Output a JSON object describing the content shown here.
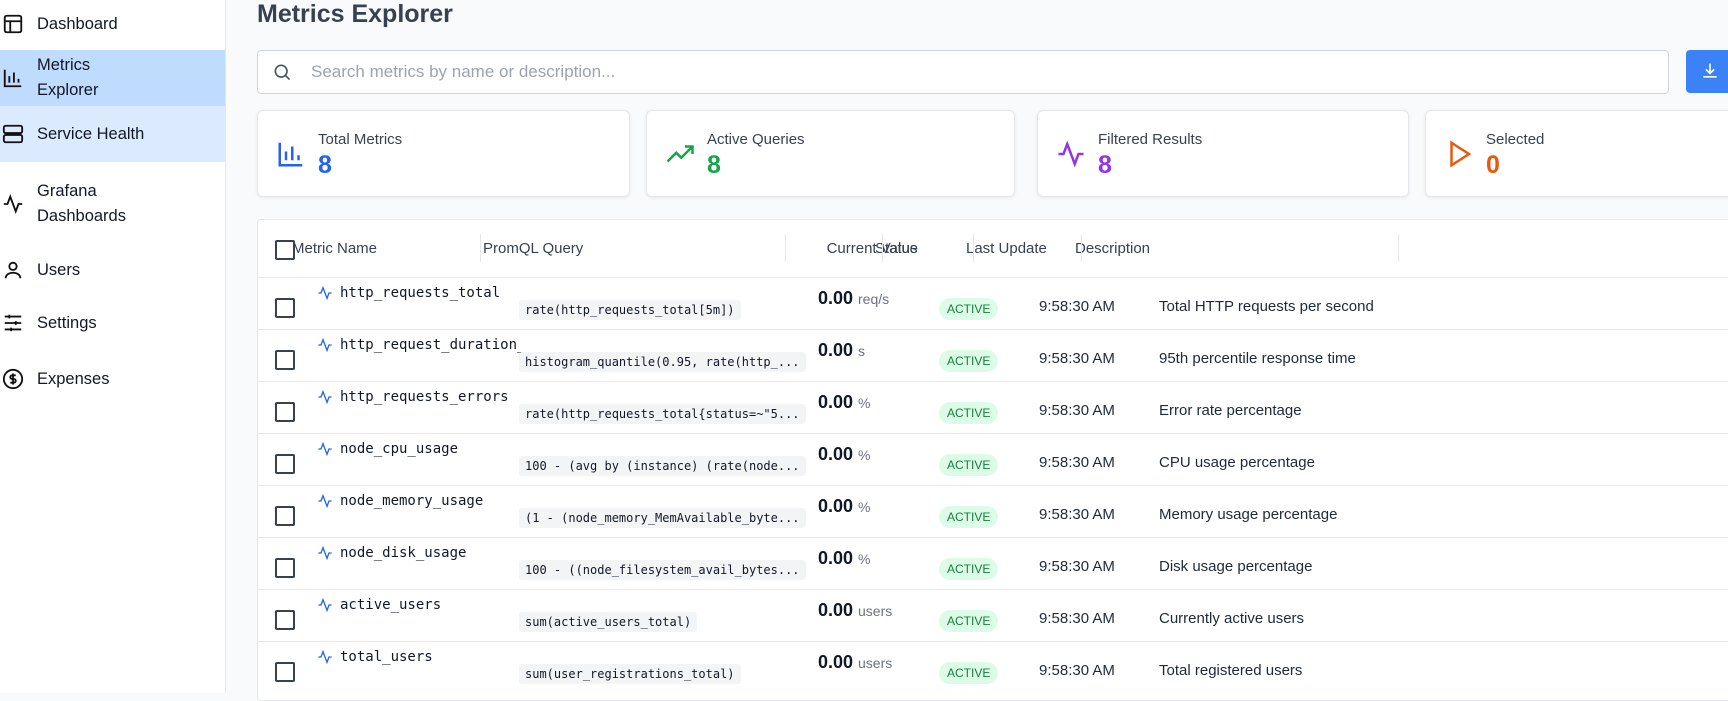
{
  "sidebar": {
    "items": [
      "Dashboard",
      "Metrics Explorer",
      "Service Health",
      "Grafana Dashboards",
      "Users",
      "Settings",
      "Expenses"
    ]
  },
  "header": {
    "title": "Metrics Explorer",
    "search_placeholder": "Search metrics by name or description..."
  },
  "stats": [
    {
      "label": "Total Metrics",
      "value": 8
    },
    {
      "label": "Active Queries",
      "value": 8
    },
    {
      "label": "Filtered Results",
      "value": 8
    },
    {
      "label": "Selected",
      "value": 0
    }
  ],
  "table": {
    "columns": [
      "Metric Name",
      "PromQL Query",
      "Current Value",
      "Status",
      "Last Update",
      "Description"
    ],
    "rows": [
      [
        "http_requests_total",
        "rate(http_requests_total[5m])",
        "0.00",
        "req/s",
        "ACTIVE",
        "9:58:30 AM",
        "Total HTTP requests per second"
      ],
      [
        "http_request_duration_",
        "histogram_quantile(0.95, rate(http_...",
        "0.00",
        "s",
        "ACTIVE",
        "9:58:30 AM",
        "95th percentile response time"
      ],
      [
        "http_requests_errors",
        "rate(http_requests_total{status=~\"5...",
        "0.00",
        "%",
        "ACTIVE",
        "9:58:30 AM",
        "Error rate percentage"
      ],
      [
        "node_cpu_usage",
        "100 - (avg by (instance) (rate(node...",
        "0.00",
        "%",
        "ACTIVE",
        "9:58:30 AM",
        "CPU usage percentage"
      ],
      [
        "node_memory_usage",
        "(1 - (node_memory_MemAvailable_byte...",
        "0.00",
        "%",
        "ACTIVE",
        "9:58:30 AM",
        "Memory usage percentage"
      ],
      [
        "node_disk_usage",
        "100 - ((node_filesystem_avail_bytes...",
        "0.00",
        "%",
        "ACTIVE",
        "9:58:30 AM",
        "Disk usage percentage"
      ],
      [
        "active_users",
        "sum(active_users_total)",
        "0.00",
        "users",
        "ACTIVE",
        "9:58:30 AM",
        "Currently active users"
      ],
      [
        "total_users",
        "sum(user_registrations_total)",
        "0.00",
        "users",
        "ACTIVE",
        "9:58:30 AM",
        "Total registered users"
      ]
    ]
  }
}
